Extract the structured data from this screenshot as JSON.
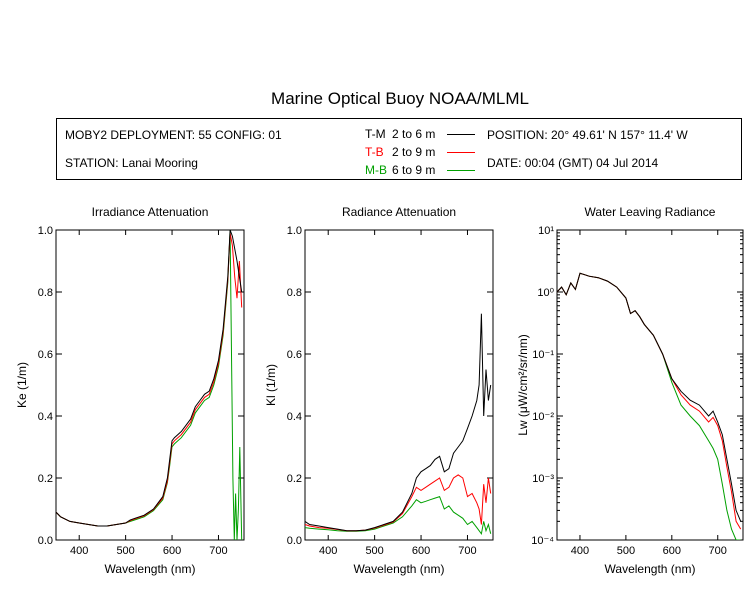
{
  "title": "Marine Optical Buoy NOAA/MLML",
  "info": {
    "deployment": "MOBY2 DEPLOYMENT: 55 CONFIG: 01",
    "station": "STATION: Lanai Mooring",
    "position": "POSITION: 20° 49.61' N   157° 11.4' W",
    "date": "DATE: 00:04 (GMT) 04 Jul 2014"
  },
  "legend": [
    {
      "name": "T-M",
      "range": "2 to 6  m",
      "color": "#000000"
    },
    {
      "name": "T-B",
      "range": "2 to 9  m",
      "color": "#ff0000"
    },
    {
      "name": "M-B",
      "range": "6 to 9  m",
      "color": "#00a000"
    }
  ],
  "chart_data": [
    {
      "type": "line",
      "title": "Irradiance Attenuation",
      "xlabel": "Wavelength (nm)",
      "ylabel": "Ke  (1/m)",
      "xlim": [
        350,
        755
      ],
      "ylim": [
        0,
        1
      ],
      "xticks": [
        400,
        500,
        600,
        700
      ],
      "yticks": [
        "0.0",
        "0.2",
        "0.4",
        "0.6",
        "0.8",
        "1.0"
      ],
      "yticks_values": [
        0,
        0.2,
        0.4,
        0.6,
        0.8,
        1.0
      ],
      "yscale": "linear",
      "series": [
        {
          "name": "T-M",
          "color": "#000000",
          "x": [
            350,
            360,
            380,
            400,
            420,
            440,
            460,
            480,
            500,
            510,
            520,
            540,
            560,
            580,
            590,
            595,
            600,
            605,
            620,
            640,
            650,
            660,
            670,
            680,
            690,
            700,
            710,
            720,
            725,
            730,
            740,
            750
          ],
          "y": [
            0.09,
            0.075,
            0.06,
            0.055,
            0.05,
            0.045,
            0.045,
            0.05,
            0.055,
            0.065,
            0.07,
            0.08,
            0.1,
            0.14,
            0.2,
            0.26,
            0.32,
            0.33,
            0.35,
            0.39,
            0.43,
            0.45,
            0.47,
            0.48,
            0.52,
            0.58,
            0.68,
            0.85,
            1.0,
            0.98,
            0.9,
            0.8
          ]
        },
        {
          "name": "T-B",
          "color": "#ff0000",
          "x": [
            350,
            360,
            380,
            400,
            420,
            440,
            460,
            480,
            500,
            510,
            520,
            540,
            560,
            580,
            590,
            595,
            600,
            605,
            620,
            640,
            650,
            660,
            670,
            680,
            690,
            700,
            710,
            720,
            725,
            730,
            735,
            740,
            745,
            750
          ],
          "y": [
            0.09,
            0.075,
            0.06,
            0.055,
            0.05,
            0.045,
            0.045,
            0.05,
            0.055,
            0.063,
            0.068,
            0.078,
            0.098,
            0.135,
            0.19,
            0.25,
            0.31,
            0.32,
            0.34,
            0.38,
            0.42,
            0.44,
            0.46,
            0.47,
            0.51,
            0.57,
            0.67,
            0.84,
            0.99,
            0.95,
            0.85,
            0.78,
            0.9,
            0.75
          ]
        },
        {
          "name": "M-B",
          "color": "#00a000",
          "x": [
            350,
            360,
            380,
            400,
            420,
            440,
            460,
            480,
            500,
            510,
            520,
            540,
            560,
            580,
            590,
            595,
            600,
            605,
            620,
            640,
            650,
            660,
            670,
            680,
            690,
            700,
            710,
            720,
            725,
            728,
            731,
            734,
            737,
            740,
            743,
            746,
            750
          ],
          "y": [
            0.09,
            0.075,
            0.06,
            0.055,
            0.05,
            0.045,
            0.045,
            0.05,
            0.055,
            0.06,
            0.065,
            0.075,
            0.095,
            0.13,
            0.185,
            0.24,
            0.3,
            0.31,
            0.33,
            0.37,
            0.41,
            0.43,
            0.45,
            0.46,
            0.5,
            0.56,
            0.66,
            0.83,
            1.0,
            0.6,
            0.2,
            0.0,
            0.15,
            0.0,
            0.1,
            0.3,
            0.0
          ]
        }
      ]
    },
    {
      "type": "line",
      "title": "Radiance Attenuation",
      "xlabel": "Wavelength (nm)",
      "ylabel": "Kl  (1/m)",
      "xlim": [
        350,
        755
      ],
      "ylim": [
        0,
        1
      ],
      "xticks": [
        400,
        500,
        600,
        700
      ],
      "yticks": [
        "0.0",
        "0.2",
        "0.4",
        "0.6",
        "0.8",
        "1.0"
      ],
      "yticks_values": [
        0,
        0.2,
        0.4,
        0.6,
        0.8,
        1.0
      ],
      "yscale": "linear",
      "series": [
        {
          "name": "T-M",
          "color": "#000000",
          "x": [
            350,
            360,
            380,
            400,
            420,
            440,
            460,
            480,
            500,
            520,
            540,
            560,
            580,
            590,
            600,
            610,
            620,
            630,
            640,
            650,
            660,
            670,
            680,
            690,
            700,
            710,
            720,
            725,
            730,
            735,
            740,
            745,
            750
          ],
          "y": [
            0.06,
            0.05,
            0.045,
            0.04,
            0.035,
            0.03,
            0.03,
            0.032,
            0.04,
            0.05,
            0.06,
            0.09,
            0.15,
            0.2,
            0.22,
            0.23,
            0.24,
            0.26,
            0.27,
            0.22,
            0.23,
            0.28,
            0.3,
            0.32,
            0.36,
            0.4,
            0.45,
            0.5,
            0.73,
            0.4,
            0.55,
            0.45,
            0.5
          ]
        },
        {
          "name": "T-B",
          "color": "#ff0000",
          "x": [
            350,
            360,
            380,
            400,
            420,
            440,
            460,
            480,
            500,
            520,
            540,
            560,
            580,
            590,
            600,
            610,
            620,
            630,
            640,
            650,
            660,
            670,
            680,
            690,
            700,
            710,
            720,
            725,
            730,
            735,
            740,
            745,
            750
          ],
          "y": [
            0.05,
            0.045,
            0.04,
            0.038,
            0.034,
            0.03,
            0.03,
            0.032,
            0.038,
            0.048,
            0.058,
            0.085,
            0.14,
            0.17,
            0.16,
            0.17,
            0.18,
            0.19,
            0.2,
            0.16,
            0.17,
            0.2,
            0.21,
            0.2,
            0.14,
            0.15,
            0.12,
            0.1,
            0.05,
            0.18,
            0.12,
            0.2,
            0.15
          ]
        },
        {
          "name": "M-B",
          "color": "#00a000",
          "x": [
            350,
            360,
            380,
            400,
            420,
            440,
            460,
            480,
            500,
            520,
            540,
            560,
            580,
            590,
            600,
            610,
            620,
            630,
            640,
            650,
            660,
            670,
            680,
            690,
            700,
            710,
            720,
            725,
            730,
            735,
            740,
            745,
            750
          ],
          "y": [
            0.04,
            0.038,
            0.035,
            0.033,
            0.03,
            0.028,
            0.028,
            0.03,
            0.035,
            0.045,
            0.055,
            0.075,
            0.11,
            0.13,
            0.12,
            0.125,
            0.13,
            0.135,
            0.14,
            0.1,
            0.11,
            0.09,
            0.08,
            0.07,
            0.05,
            0.06,
            0.04,
            0.03,
            0.02,
            0.06,
            0.03,
            0.05,
            0.02
          ]
        }
      ]
    },
    {
      "type": "line",
      "title": "Water Leaving Radiance",
      "xlabel": "Wavelength (nm)",
      "ylabel": "Lw  (μW/cm²/sr/nm)",
      "xlim": [
        350,
        755
      ],
      "ylim": [
        0.0001,
        10
      ],
      "xticks": [
        400,
        500,
        600,
        700
      ],
      "yticks": [
        "10¹",
        "10⁰",
        "10⁻¹",
        "10⁻²",
        "10⁻³",
        "10⁻⁴"
      ],
      "yticks_values": [
        10,
        1,
        0.1,
        0.01,
        0.001,
        0.0001
      ],
      "yscale": "log",
      "series": [
        {
          "name": "T-M",
          "color": "#000000",
          "x": [
            350,
            360,
            370,
            380,
            390,
            400,
            410,
            420,
            440,
            460,
            480,
            500,
            510,
            520,
            530,
            540,
            560,
            580,
            600,
            620,
            640,
            660,
            680,
            690,
            700,
            710,
            720,
            730,
            740,
            750
          ],
          "y": [
            1.0,
            1.2,
            0.9,
            1.4,
            1.1,
            2.0,
            1.9,
            1.8,
            1.7,
            1.5,
            1.2,
            0.8,
            0.45,
            0.5,
            0.4,
            0.3,
            0.2,
            0.1,
            0.04,
            0.025,
            0.018,
            0.015,
            0.01,
            0.012,
            0.008,
            0.005,
            0.002,
            0.0008,
            0.0003,
            0.0002
          ]
        },
        {
          "name": "T-B",
          "color": "#ff0000",
          "x": [
            350,
            360,
            370,
            380,
            390,
            400,
            410,
            420,
            440,
            460,
            480,
            500,
            510,
            520,
            530,
            540,
            560,
            580,
            600,
            620,
            640,
            660,
            680,
            690,
            700,
            710,
            720,
            730,
            740,
            750
          ],
          "y": [
            1.0,
            1.2,
            0.9,
            1.4,
            1.1,
            2.0,
            1.9,
            1.8,
            1.7,
            1.5,
            1.2,
            0.8,
            0.45,
            0.5,
            0.4,
            0.3,
            0.2,
            0.1,
            0.04,
            0.022,
            0.015,
            0.012,
            0.008,
            0.0095,
            0.007,
            0.004,
            0.0015,
            0.0006,
            0.0002,
            0.00015
          ]
        },
        {
          "name": "M-B",
          "color": "#00a000",
          "x": [
            350,
            360,
            370,
            380,
            390,
            400,
            410,
            420,
            440,
            460,
            480,
            500,
            510,
            520,
            530,
            540,
            560,
            580,
            600,
            620,
            640,
            660,
            680,
            690,
            700,
            710,
            720,
            730,
            740,
            750
          ],
          "y": [
            1.0,
            1.2,
            0.9,
            1.4,
            1.1,
            2.0,
            1.9,
            1.8,
            1.7,
            1.5,
            1.2,
            0.8,
            0.45,
            0.5,
            0.4,
            0.3,
            0.2,
            0.1,
            0.035,
            0.015,
            0.01,
            0.007,
            0.004,
            0.003,
            0.002,
            0.0008,
            0.0003,
            0.00015,
            0.0001,
            0.0001
          ]
        }
      ]
    }
  ]
}
